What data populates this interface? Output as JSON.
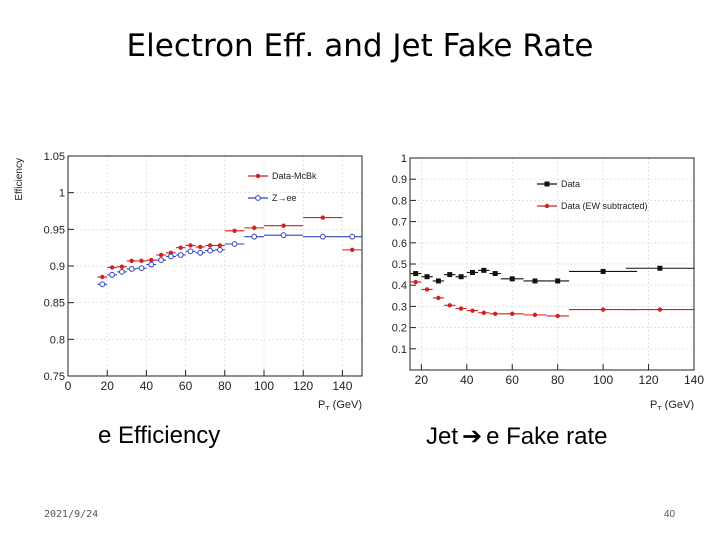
{
  "slide": {
    "title": "Electron Eff. and Jet Fake Rate",
    "caption_left": "e Efficiency",
    "caption_right_prefix": "Jet",
    "caption_right_suffix": "e Fake rate",
    "date": "2021/9/24",
    "page": "40"
  },
  "chart_data": [
    {
      "type": "scatter",
      "title": "",
      "xlabel": "P_T (GeV)",
      "ylabel": "Efficiency",
      "xlim": [
        0,
        150
      ],
      "ylim": [
        0.75,
        1.05
      ],
      "x_ticks": [
        0,
        20,
        40,
        60,
        80,
        100,
        120,
        140
      ],
      "y_ticks": [
        0.75,
        0.8,
        0.85,
        0.9,
        0.95,
        1,
        1.05
      ],
      "y_tick_labels": [
        "0.75",
        "0.8",
        "0.85",
        "0.9",
        "0.95",
        "1",
        "1.05"
      ],
      "grid": true,
      "legend_position": "top-right",
      "series": [
        {
          "name": "Data-McBk",
          "color": "#d42020",
          "marker": "filled-circle",
          "points": [
            {
              "x": 17.5,
              "y": 0.885,
              "xerr": 2.5
            },
            {
              "x": 22.5,
              "y": 0.898,
              "xerr": 2.5
            },
            {
              "x": 27.5,
              "y": 0.899,
              "xerr": 2.5
            },
            {
              "x": 32.5,
              "y": 0.907,
              "xerr": 2.5
            },
            {
              "x": 37.5,
              "y": 0.907,
              "xerr": 2.5
            },
            {
              "x": 42.5,
              "y": 0.908,
              "xerr": 2.5
            },
            {
              "x": 47.5,
              "y": 0.915,
              "xerr": 2.5
            },
            {
              "x": 52.5,
              "y": 0.918,
              "xerr": 2.5
            },
            {
              "x": 57.5,
              "y": 0.925,
              "xerr": 2.5
            },
            {
              "x": 62.5,
              "y": 0.928,
              "xerr": 2.5
            },
            {
              "x": 67.5,
              "y": 0.926,
              "xerr": 2.5
            },
            {
              "x": 72.5,
              "y": 0.928,
              "xerr": 2.5
            },
            {
              "x": 77.5,
              "y": 0.928,
              "xerr": 2.5
            },
            {
              "x": 85,
              "y": 0.948,
              "xerr": 5
            },
            {
              "x": 95,
              "y": 0.952,
              "xerr": 5
            },
            {
              "x": 110,
              "y": 0.955,
              "xerr": 10
            },
            {
              "x": 130,
              "y": 0.966,
              "xerr": 10
            },
            {
              "x": 145,
              "y": 0.922,
              "xerr": 5
            }
          ]
        },
        {
          "name": "Z→ee",
          "color": "#3344bb",
          "marker": "open-circle",
          "points": [
            {
              "x": 17.5,
              "y": 0.875,
              "xerr": 2.5
            },
            {
              "x": 22.5,
              "y": 0.888,
              "xerr": 2.5
            },
            {
              "x": 27.5,
              "y": 0.892,
              "xerr": 2.5
            },
            {
              "x": 32.5,
              "y": 0.896,
              "xerr": 2.5
            },
            {
              "x": 37.5,
              "y": 0.897,
              "xerr": 2.5
            },
            {
              "x": 42.5,
              "y": 0.902,
              "xerr": 2.5
            },
            {
              "x": 47.5,
              "y": 0.908,
              "xerr": 2.5
            },
            {
              "x": 52.5,
              "y": 0.913,
              "xerr": 2.5
            },
            {
              "x": 57.5,
              "y": 0.915,
              "xerr": 2.5
            },
            {
              "x": 62.5,
              "y": 0.92,
              "xerr": 2.5
            },
            {
              "x": 67.5,
              "y": 0.918,
              "xerr": 2.5
            },
            {
              "x": 72.5,
              "y": 0.921,
              "xerr": 2.5
            },
            {
              "x": 77.5,
              "y": 0.922,
              "xerr": 2.5
            },
            {
              "x": 85,
              "y": 0.93,
              "xerr": 5
            },
            {
              "x": 95,
              "y": 0.94,
              "xerr": 5
            },
            {
              "x": 110,
              "y": 0.942,
              "xerr": 10
            },
            {
              "x": 130,
              "y": 0.94,
              "xerr": 10
            },
            {
              "x": 145,
              "y": 0.94,
              "xerr": 5
            }
          ]
        }
      ]
    },
    {
      "type": "scatter",
      "title": "",
      "xlabel": "P_T (GeV)",
      "ylabel": "",
      "xlim": [
        15,
        140
      ],
      "ylim": [
        0,
        1
      ],
      "x_ticks": [
        20,
        40,
        60,
        80,
        100,
        120,
        140
      ],
      "y_ticks": [
        0.1,
        0.2,
        0.3,
        0.4,
        0.5,
        0.6,
        0.7,
        0.8,
        0.9,
        1
      ],
      "y_tick_labels": [
        "0.1",
        "0.2",
        "0.3",
        "0.4",
        "0.5",
        "0.6",
        "0.7",
        "0.8",
        "0.9",
        "1"
      ],
      "grid": true,
      "legend_position": "top-right",
      "series": [
        {
          "name": "Data",
          "color": "#111111",
          "marker": "filled-square",
          "points": [
            {
              "x": 17.5,
              "y": 0.455,
              "xerr": 2.5
            },
            {
              "x": 22.5,
              "y": 0.44,
              "xerr": 2.5
            },
            {
              "x": 27.5,
              "y": 0.42,
              "xerr": 2.5
            },
            {
              "x": 32.5,
              "y": 0.45,
              "xerr": 2.5
            },
            {
              "x": 37.5,
              "y": 0.44,
              "xerr": 2.5
            },
            {
              "x": 42.5,
              "y": 0.46,
              "xerr": 2.5
            },
            {
              "x": 47.5,
              "y": 0.47,
              "xerr": 2.5
            },
            {
              "x": 52.5,
              "y": 0.455,
              "xerr": 2.5
            },
            {
              "x": 60,
              "y": 0.43,
              "xerr": 5
            },
            {
              "x": 70,
              "y": 0.42,
              "xerr": 5
            },
            {
              "x": 80,
              "y": 0.42,
              "xerr": 5
            },
            {
              "x": 100,
              "y": 0.465,
              "xerr": 15
            },
            {
              "x": 125,
              "y": 0.48,
              "xerr": 15
            }
          ]
        },
        {
          "name": "Data (EW subtracted)",
          "color": "#d42020",
          "marker": "filled-circle",
          "points": [
            {
              "x": 17.5,
              "y": 0.415,
              "xerr": 2.5
            },
            {
              "x": 22.5,
              "y": 0.38,
              "xerr": 2.5
            },
            {
              "x": 27.5,
              "y": 0.34,
              "xerr": 2.5
            },
            {
              "x": 32.5,
              "y": 0.305,
              "xerr": 2.5
            },
            {
              "x": 37.5,
              "y": 0.29,
              "xerr": 2.5
            },
            {
              "x": 42.5,
              "y": 0.28,
              "xerr": 2.5
            },
            {
              "x": 47.5,
              "y": 0.27,
              "xerr": 2.5
            },
            {
              "x": 52.5,
              "y": 0.265,
              "xerr": 2.5
            },
            {
              "x": 60,
              "y": 0.265,
              "xerr": 5
            },
            {
              "x": 70,
              "y": 0.26,
              "xerr": 5
            },
            {
              "x": 80,
              "y": 0.255,
              "xerr": 5
            },
            {
              "x": 100,
              "y": 0.285,
              "xerr": 15
            },
            {
              "x": 125,
              "y": 0.285,
              "xerr": 15
            }
          ]
        }
      ]
    }
  ]
}
